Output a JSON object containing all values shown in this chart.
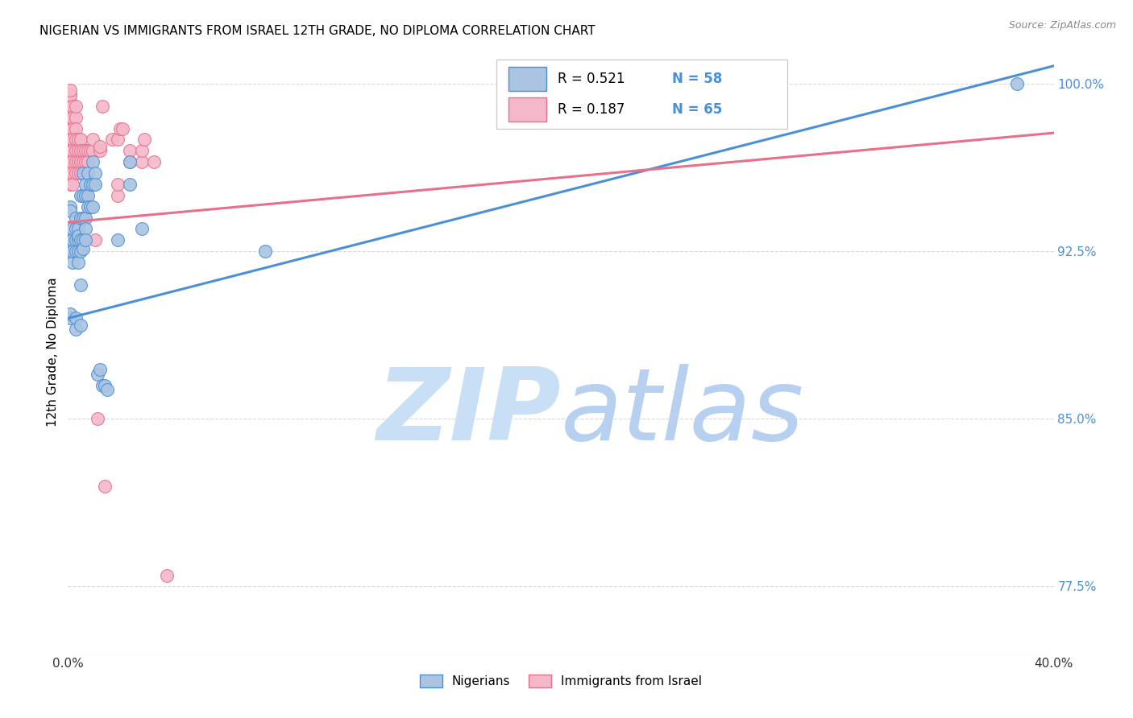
{
  "title": "NIGERIAN VS IMMIGRANTS FROM ISRAEL 12TH GRADE, NO DIPLOMA CORRELATION CHART",
  "source": "Source: ZipAtlas.com",
  "ylabel": "12th Grade, No Diploma",
  "xmin": 0.0,
  "xmax": 0.4,
  "ymin": 0.745,
  "ymax": 1.015,
  "yticks": [
    0.775,
    0.85,
    0.925,
    1.0
  ],
  "ytick_labels": [
    "77.5%",
    "85.0%",
    "92.5%",
    "100.0%"
  ],
  "xtick_positions": [
    0.0,
    0.08,
    0.16,
    0.24,
    0.32,
    0.4
  ],
  "xtick_labels": [
    "0.0%",
    "",
    "",
    "",
    "",
    "40.0%"
  ],
  "legend_R_blue": "0.521",
  "legend_N_blue": "58",
  "legend_R_pink": "0.187",
  "legend_N_pink": "65",
  "legend_label_blue": "Nigerians",
  "legend_label_pink": "Immigrants from Israel",
  "scatter_blue": [
    [
      0.001,
      0.895
    ],
    [
      0.001,
      0.897
    ],
    [
      0.001,
      0.93
    ],
    [
      0.001,
      0.925
    ],
    [
      0.001,
      0.945
    ],
    [
      0.001,
      0.943
    ],
    [
      0.002,
      0.93
    ],
    [
      0.002,
      0.92
    ],
    [
      0.002,
      0.925
    ],
    [
      0.002,
      0.935
    ],
    [
      0.003,
      0.94
    ],
    [
      0.003,
      0.935
    ],
    [
      0.003,
      0.93
    ],
    [
      0.003,
      0.925
    ],
    [
      0.003,
      0.895
    ],
    [
      0.003,
      0.89
    ],
    [
      0.004,
      0.935
    ],
    [
      0.004,
      0.93
    ],
    [
      0.004,
      0.925
    ],
    [
      0.004,
      0.92
    ],
    [
      0.004,
      0.932
    ],
    [
      0.005,
      0.95
    ],
    [
      0.005,
      0.94
    ],
    [
      0.005,
      0.93
    ],
    [
      0.005,
      0.925
    ],
    [
      0.005,
      0.91
    ],
    [
      0.005,
      0.892
    ],
    [
      0.006,
      0.96
    ],
    [
      0.006,
      0.95
    ],
    [
      0.006,
      0.94
    ],
    [
      0.006,
      0.93
    ],
    [
      0.006,
      0.926
    ],
    [
      0.007,
      0.955
    ],
    [
      0.007,
      0.95
    ],
    [
      0.007,
      0.94
    ],
    [
      0.007,
      0.935
    ],
    [
      0.007,
      0.93
    ],
    [
      0.008,
      0.96
    ],
    [
      0.008,
      0.95
    ],
    [
      0.008,
      0.945
    ],
    [
      0.009,
      0.955
    ],
    [
      0.009,
      0.945
    ],
    [
      0.01,
      0.965
    ],
    [
      0.01,
      0.955
    ],
    [
      0.01,
      0.945
    ],
    [
      0.011,
      0.96
    ],
    [
      0.011,
      0.955
    ],
    [
      0.012,
      0.87
    ],
    [
      0.013,
      0.872
    ],
    [
      0.014,
      0.865
    ],
    [
      0.015,
      0.865
    ],
    [
      0.016,
      0.863
    ],
    [
      0.02,
      0.93
    ],
    [
      0.025,
      0.965
    ],
    [
      0.025,
      0.955
    ],
    [
      0.03,
      0.935
    ],
    [
      0.08,
      0.925
    ],
    [
      0.385,
      1.0
    ]
  ],
  "scatter_pink": [
    [
      0.001,
      0.98
    ],
    [
      0.001,
      0.985
    ],
    [
      0.001,
      0.99
    ],
    [
      0.001,
      0.99
    ],
    [
      0.001,
      0.992
    ],
    [
      0.001,
      0.995
    ],
    [
      0.001,
      0.995
    ],
    [
      0.001,
      0.997
    ],
    [
      0.001,
      0.975
    ],
    [
      0.001,
      0.97
    ],
    [
      0.001,
      0.965
    ],
    [
      0.001,
      0.96
    ],
    [
      0.001,
      0.955
    ],
    [
      0.001,
      0.985
    ],
    [
      0.002,
      0.99
    ],
    [
      0.002,
      0.985
    ],
    [
      0.002,
      0.98
    ],
    [
      0.002,
      0.975
    ],
    [
      0.002,
      0.97
    ],
    [
      0.002,
      0.965
    ],
    [
      0.002,
      0.96
    ],
    [
      0.002,
      0.955
    ],
    [
      0.003,
      0.985
    ],
    [
      0.003,
      0.98
    ],
    [
      0.003,
      0.975
    ],
    [
      0.003,
      0.97
    ],
    [
      0.003,
      0.965
    ],
    [
      0.003,
      0.96
    ],
    [
      0.003,
      0.99
    ],
    [
      0.004,
      0.975
    ],
    [
      0.004,
      0.97
    ],
    [
      0.004,
      0.965
    ],
    [
      0.004,
      0.96
    ],
    [
      0.005,
      0.975
    ],
    [
      0.005,
      0.97
    ],
    [
      0.005,
      0.965
    ],
    [
      0.005,
      0.96
    ],
    [
      0.006,
      0.97
    ],
    [
      0.006,
      0.965
    ],
    [
      0.007,
      0.97
    ],
    [
      0.007,
      0.965
    ],
    [
      0.008,
      0.97
    ],
    [
      0.008,
      0.965
    ],
    [
      0.009,
      0.97
    ],
    [
      0.01,
      0.97
    ],
    [
      0.01,
      0.975
    ],
    [
      0.011,
      0.93
    ],
    [
      0.012,
      0.85
    ],
    [
      0.013,
      0.97
    ],
    [
      0.013,
      0.972
    ],
    [
      0.014,
      0.99
    ],
    [
      0.015,
      0.82
    ],
    [
      0.018,
      0.975
    ],
    [
      0.02,
      0.95
    ],
    [
      0.02,
      0.955
    ],
    [
      0.02,
      0.975
    ],
    [
      0.021,
      0.98
    ],
    [
      0.022,
      0.98
    ],
    [
      0.025,
      0.965
    ],
    [
      0.025,
      0.97
    ],
    [
      0.03,
      0.965
    ],
    [
      0.03,
      0.97
    ],
    [
      0.031,
      0.975
    ],
    [
      0.035,
      0.965
    ],
    [
      0.04,
      0.78
    ]
  ],
  "blue_line_x": [
    0.0,
    0.4
  ],
  "blue_line_y": [
    0.895,
    1.008
  ],
  "pink_line_x": [
    0.0,
    0.4
  ],
  "pink_line_y": [
    0.938,
    0.978
  ],
  "dot_color_blue": "#aac4e2",
  "dot_color_pink": "#f5b8ca",
  "line_color_blue": "#4a90d9",
  "line_color_pink": "#e8708a",
  "watermark_zip": "ZIP",
  "watermark_atlas": "atlas",
  "watermark_color_zip": "#c8dff5",
  "watermark_color_atlas": "#b8d0f0",
  "background_color": "#ffffff",
  "grid_color": "#d8d8d8",
  "title_fontsize": 11,
  "tick_color_y": "#4a90d9",
  "tick_color_x": "#333333"
}
